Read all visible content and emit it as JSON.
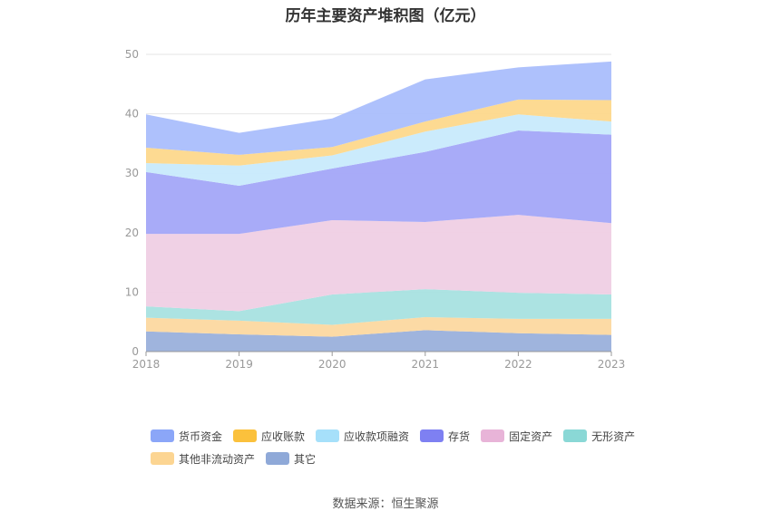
{
  "title": "历年主要资产堆积图（亿元）",
  "source": "数据来源：恒生聚源",
  "chart_data": {
    "type": "area",
    "stacked": true,
    "x": [
      "2018",
      "2019",
      "2020",
      "2021",
      "2022",
      "2023"
    ],
    "ylim": [
      0,
      50
    ],
    "yticks": [
      "0",
      "10",
      "20",
      "30",
      "40",
      "50"
    ],
    "grid": true,
    "legend_position": "bottom",
    "series": [
      {
        "name": "其它",
        "color": "#9ab0db",
        "values": [
          3.4,
          2.9,
          2.5,
          3.6,
          3.1,
          2.8
        ]
      },
      {
        "name": "其他非流动资产",
        "color": "#fcd8a0",
        "values": [
          2.3,
          2.3,
          2.0,
          2.2,
          2.4,
          2.7
        ]
      },
      {
        "name": "无形资产",
        "color": "#a8e2e0",
        "values": [
          1.9,
          1.6,
          5.1,
          4.7,
          4.4,
          4.1
        ]
      },
      {
        "name": "固定资产",
        "color": "#efcfe4",
        "values": [
          12.2,
          13.0,
          12.5,
          11.3,
          13.1,
          12.0
        ]
      },
      {
        "name": "存货",
        "color": "#a3a6f8",
        "values": [
          10.4,
          8.1,
          8.7,
          11.8,
          14.2,
          14.9
        ]
      },
      {
        "name": "应收款项融资",
        "color": "#c8eafc",
        "values": [
          1.5,
          3.4,
          2.2,
          3.4,
          2.7,
          2.2
        ]
      },
      {
        "name": "应收账款",
        "color": "#fdd88c",
        "values": [
          2.6,
          1.8,
          1.4,
          1.7,
          2.5,
          3.6
        ]
      },
      {
        "name": "货币资金",
        "color": "#aabefc",
        "values": [
          5.6,
          3.7,
          4.8,
          7.1,
          5.4,
          6.5
        ]
      }
    ]
  },
  "legend": [
    {
      "label": "货币资金",
      "color": "#8ba6f8"
    },
    {
      "label": "应收账款",
      "color": "#fbc13c"
    },
    {
      "label": "应收款项融资",
      "color": "#a6e0fa"
    },
    {
      "label": "存货",
      "color": "#7e80f2"
    },
    {
      "label": "固定资产",
      "color": "#e8b4d8"
    },
    {
      "label": "无形资产",
      "color": "#8ad8d6"
    },
    {
      "label": "其他非流动资产",
      "color": "#fcd592"
    },
    {
      "label": "其它",
      "color": "#8fa9d8"
    }
  ]
}
